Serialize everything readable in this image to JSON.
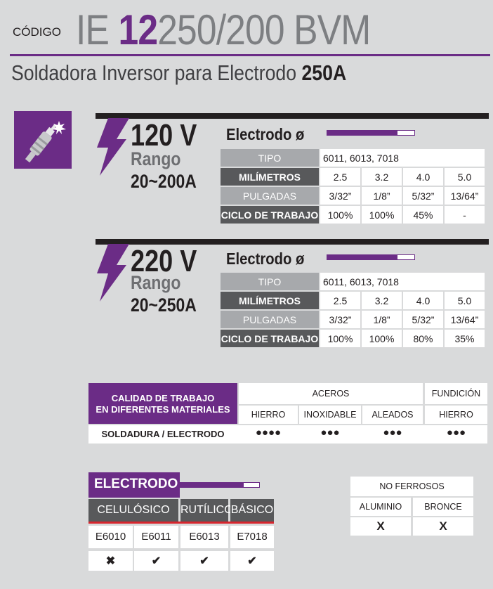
{
  "header": {
    "codigo_label": "CÓDIGO",
    "model_prefix": "IE ",
    "model_number": "12",
    "model_suffix": "250/200 BVM",
    "subtitle_text": "Soldadora Inversor para Electrodo ",
    "subtitle_bold": "250A"
  },
  "icons": {
    "torch": "welding-torch-icon",
    "bolt": "lightning-bolt-icon"
  },
  "colors": {
    "purple": "#6b2c86",
    "dark_gray": "#58595b",
    "light_gray": "#a7a9ac",
    "background": "#d9dadb"
  },
  "sections": [
    {
      "voltage": "120 V",
      "rango_label": "Rango",
      "range": "20~200A",
      "electrodo_title": "Electrodo ø",
      "tipo_label": "TIPO",
      "tipo_value": "6011, 6013, 7018",
      "mm_label": "MILÍMETROS",
      "mm_values": [
        "2.5",
        "3.2",
        "4.0",
        "5.0"
      ],
      "in_label": "PULGADAS",
      "in_values": [
        "3/32”",
        "1/8”",
        "5/32”",
        "13/64”"
      ],
      "duty_label": "CICLO DE TRABAJO",
      "duty_values": [
        "100%",
        "100%",
        "45%",
        "-"
      ]
    },
    {
      "voltage": "220 V",
      "rango_label": "Rango",
      "range": "20~250A",
      "electrodo_title": "Electrodo ø",
      "tipo_label": "TIPO",
      "tipo_value": "6011, 6013, 7018",
      "mm_label": "MILÍMETROS",
      "mm_values": [
        "2.5",
        "3.2",
        "4.0",
        "5.0"
      ],
      "in_label": "PULGADAS",
      "in_values": [
        "3/32”",
        "1/8”",
        "5/32”",
        "13/64”"
      ],
      "duty_label": "CICLO DE TRABAJO",
      "duty_values": [
        "100%",
        "100%",
        "80%",
        "35%"
      ]
    }
  ],
  "calidad": {
    "label_line1": "CALIDAD DE TRABAJO",
    "label_line2": "EN DIFERENTES MATERIALES",
    "aceros_label": "ACEROS",
    "fundicion_label": "FUNDICIÓN",
    "columns": [
      "HIERRO",
      "INOXIDABLE",
      "ALEADOS",
      "HIERRO"
    ],
    "row_label": "SOLDADURA / ELECTRODO",
    "ratings": [
      "●●●●",
      "●●●",
      "●●●",
      "●●●"
    ]
  },
  "electrodo": {
    "title": "ELECTRODO",
    "types": [
      "CELULÓSICO",
      "RUTÍLICO",
      "BÁSICO"
    ],
    "codes": [
      "E6010",
      "E6011",
      "E6013",
      "E7018"
    ],
    "marks": [
      "✖",
      "✔",
      "✔",
      "✔"
    ]
  },
  "no_ferrosos": {
    "title": "NO FERROSOS",
    "columns": [
      "ALUMINIO",
      "BRONCE"
    ],
    "marks": [
      "X",
      "X"
    ]
  }
}
